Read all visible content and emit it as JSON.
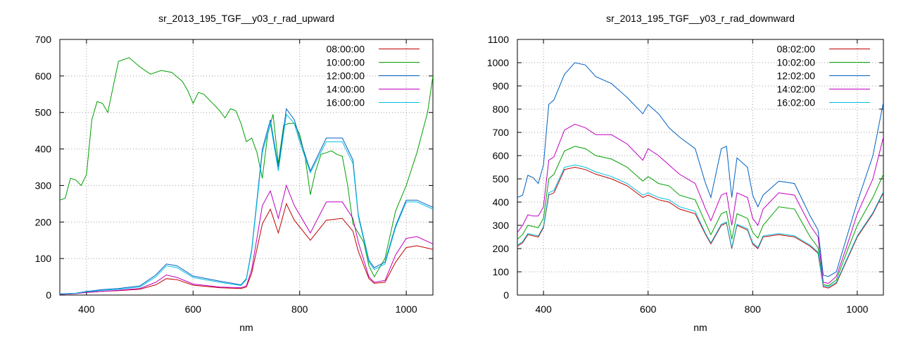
{
  "chart_data": [
    {
      "type": "line",
      "title": "sr_2013_195_TGF__y03_r_rad_upward",
      "xlabel": "nm",
      "ylabel": "",
      "xlim": [
        350,
        1050
      ],
      "ylim": [
        0,
        700
      ],
      "xticks": [
        400,
        600,
        800,
        1000
      ],
      "yticks": [
        0,
        100,
        200,
        300,
        400,
        500,
        600,
        700
      ],
      "grid": true,
      "legend_position": "top-right",
      "series": [
        {
          "name": "08:00:00",
          "color": "#c00000",
          "x": [
            350,
            380,
            400,
            430,
            460,
            500,
            530,
            550,
            570,
            600,
            650,
            690,
            700,
            710,
            730,
            745,
            760,
            775,
            790,
            820,
            850,
            880,
            900,
            910,
            930,
            940,
            960,
            980,
            1000,
            1020,
            1050
          ],
          "y": [
            2,
            4,
            8,
            10,
            12,
            16,
            28,
            45,
            42,
            27,
            20,
            18,
            22,
            60,
            195,
            235,
            170,
            250,
            205,
            150,
            205,
            210,
            175,
            120,
            45,
            32,
            35,
            90,
            130,
            135,
            125
          ]
        },
        {
          "name": "10:00:00",
          "color": "#00a000",
          "x": [
            350,
            360,
            370,
            380,
            390,
            400,
            410,
            420,
            430,
            440,
            460,
            480,
            500,
            520,
            540,
            560,
            580,
            590,
            600,
            610,
            620,
            640,
            650,
            660,
            670,
            680,
            690,
            700,
            710,
            720,
            730,
            740,
            750,
            760,
            770,
            780,
            790,
            800,
            810,
            820,
            830,
            840,
            850,
            860,
            870,
            880,
            890,
            900,
            910,
            920,
            930,
            940,
            950,
            960,
            980,
            1000,
            1020,
            1040,
            1050
          ],
          "y": [
            260,
            265,
            320,
            315,
            300,
            330,
            480,
            530,
            525,
            500,
            640,
            650,
            625,
            605,
            615,
            610,
            585,
            560,
            525,
            555,
            550,
            520,
            505,
            485,
            510,
            505,
            470,
            420,
            430,
            390,
            320,
            440,
            495,
            360,
            465,
            470,
            470,
            440,
            380,
            275,
            340,
            385,
            390,
            395,
            385,
            380,
            300,
            195,
            170,
            145,
            80,
            50,
            75,
            100,
            230,
            300,
            390,
            500,
            600
          ]
        },
        {
          "name": "12:00:00",
          "color": "#0060c0",
          "x": [
            350,
            380,
            400,
            430,
            460,
            500,
            530,
            550,
            570,
            600,
            650,
            690,
            700,
            710,
            730,
            745,
            760,
            775,
            790,
            800,
            820,
            850,
            880,
            900,
            910,
            930,
            940,
            960,
            980,
            1000,
            1020,
            1050
          ],
          "y": [
            3,
            5,
            10,
            15,
            18,
            25,
            55,
            85,
            80,
            52,
            38,
            28,
            45,
            125,
            400,
            480,
            350,
            510,
            480,
            430,
            340,
            430,
            430,
            370,
            220,
            95,
            75,
            90,
            190,
            260,
            260,
            240
          ]
        },
        {
          "name": "14:00:00",
          "color": "#c000c0",
          "x": [
            350,
            380,
            400,
            430,
            460,
            500,
            530,
            550,
            570,
            600,
            650,
            690,
            700,
            710,
            730,
            745,
            760,
            775,
            790,
            820,
            850,
            880,
            900,
            910,
            930,
            940,
            960,
            980,
            1000,
            1020,
            1050
          ],
          "y": [
            2,
            4,
            7,
            10,
            13,
            18,
            35,
            55,
            48,
            30,
            22,
            20,
            25,
            70,
            245,
            285,
            210,
            300,
            245,
            170,
            255,
            255,
            210,
            145,
            50,
            35,
            40,
            110,
            155,
            160,
            140
          ]
        },
        {
          "name": "16:00:00",
          "color": "#00c0e0",
          "x": [
            350,
            380,
            400,
            430,
            460,
            500,
            530,
            550,
            570,
            600,
            650,
            690,
            700,
            710,
            730,
            745,
            760,
            775,
            790,
            800,
            820,
            850,
            880,
            900,
            910,
            930,
            940,
            960,
            980,
            1000,
            1020,
            1050
          ],
          "y": [
            3,
            5,
            9,
            13,
            16,
            22,
            50,
            80,
            75,
            48,
            35,
            26,
            42,
            120,
            390,
            470,
            340,
            495,
            470,
            420,
            335,
            420,
            420,
            360,
            215,
            90,
            70,
            85,
            185,
            255,
            255,
            235
          ]
        }
      ]
    },
    {
      "type": "line",
      "title": "sr_2013_195_TGF__y03_r_rad_downward",
      "xlabel": "nm",
      "ylabel": "",
      "xlim": [
        350,
        1050
      ],
      "ylim": [
        0,
        1100
      ],
      "xticks": [
        400,
        600,
        800,
        1000
      ],
      "yticks": [
        0,
        100,
        200,
        300,
        400,
        500,
        600,
        700,
        800,
        900,
        1000,
        1100
      ],
      "grid": true,
      "legend_position": "top-right",
      "series": [
        {
          "name": "08:02:00",
          "color": "#c00000",
          "x": [
            350,
            360,
            370,
            380,
            390,
            400,
            410,
            420,
            440,
            460,
            480,
            500,
            530,
            560,
            590,
            600,
            620,
            640,
            660,
            690,
            710,
            720,
            740,
            750,
            760,
            770,
            790,
            800,
            810,
            820,
            850,
            880,
            910,
            925,
            935,
            945,
            960,
            980,
            1000,
            1030,
            1050
          ],
          "y": [
            210,
            225,
            260,
            255,
            250,
            290,
            430,
            440,
            540,
            550,
            540,
            520,
            500,
            470,
            420,
            430,
            410,
            400,
            370,
            350,
            260,
            220,
            300,
            310,
            200,
            300,
            280,
            220,
            200,
            250,
            260,
            250,
            210,
            180,
            35,
            30,
            50,
            150,
            250,
            350,
            440
          ]
        },
        {
          "name": "10:02:00",
          "color": "#00a000",
          "x": [
            350,
            360,
            370,
            380,
            390,
            400,
            410,
            420,
            440,
            460,
            480,
            500,
            530,
            560,
            590,
            600,
            620,
            640,
            660,
            690,
            710,
            720,
            740,
            750,
            760,
            770,
            790,
            800,
            810,
            820,
            850,
            880,
            910,
            925,
            935,
            945,
            960,
            980,
            1000,
            1030,
            1050
          ],
          "y": [
            240,
            260,
            300,
            295,
            290,
            330,
            500,
            520,
            620,
            640,
            630,
            600,
            585,
            550,
            490,
            510,
            480,
            470,
            430,
            410,
            310,
            260,
            350,
            360,
            240,
            350,
            330,
            270,
            245,
            300,
            380,
            370,
            250,
            205,
            45,
            40,
            65,
            185,
            300,
            420,
            520
          ]
        },
        {
          "name": "12:02:00",
          "color": "#0060c0",
          "x": [
            350,
            360,
            370,
            380,
            390,
            400,
            410,
            420,
            440,
            460,
            480,
            500,
            530,
            560,
            590,
            600,
            620,
            640,
            660,
            690,
            710,
            720,
            740,
            750,
            760,
            770,
            790,
            800,
            810,
            820,
            850,
            880,
            910,
            925,
            935,
            945,
            960,
            980,
            1000,
            1030,
            1050
          ],
          "y": [
            420,
            430,
            515,
            505,
            480,
            560,
            820,
            840,
            950,
            1000,
            990,
            940,
            910,
            850,
            780,
            820,
            780,
            720,
            680,
            630,
            480,
            420,
            630,
            640,
            420,
            590,
            550,
            430,
            380,
            430,
            490,
            480,
            340,
            280,
            85,
            80,
            100,
            250,
            400,
            600,
            830
          ]
        },
        {
          "name": "14:02:00",
          "color": "#c000c0",
          "x": [
            350,
            360,
            370,
            380,
            390,
            400,
            410,
            420,
            440,
            460,
            480,
            500,
            530,
            560,
            590,
            600,
            620,
            640,
            660,
            690,
            710,
            720,
            740,
            750,
            760,
            770,
            790,
            800,
            810,
            820,
            850,
            880,
            910,
            925,
            935,
            945,
            960,
            980,
            1000,
            1030,
            1050
          ],
          "y": [
            270,
            300,
            345,
            340,
            340,
            380,
            580,
            595,
            710,
            735,
            720,
            690,
            690,
            650,
            580,
            630,
            600,
            560,
            520,
            480,
            370,
            320,
            430,
            440,
            300,
            440,
            420,
            330,
            300,
            370,
            440,
            430,
            300,
            250,
            55,
            50,
            80,
            210,
            350,
            500,
            680
          ]
        },
        {
          "name": "16:02:00",
          "color": "#00c0e0",
          "x": [
            350,
            360,
            370,
            380,
            390,
            400,
            410,
            420,
            440,
            460,
            480,
            500,
            530,
            560,
            590,
            600,
            620,
            640,
            660,
            690,
            710,
            720,
            740,
            750,
            760,
            770,
            790,
            800,
            810,
            820,
            850,
            880,
            910,
            925,
            935,
            945,
            960,
            980,
            1000,
            1030,
            1050
          ],
          "y": [
            215,
            230,
            265,
            260,
            255,
            295,
            440,
            450,
            550,
            560,
            550,
            530,
            510,
            480,
            430,
            440,
            420,
            410,
            380,
            360,
            265,
            225,
            305,
            315,
            205,
            305,
            285,
            225,
            205,
            255,
            265,
            255,
            215,
            185,
            40,
            35,
            55,
            155,
            255,
            355,
            445
          ]
        }
      ]
    }
  ]
}
